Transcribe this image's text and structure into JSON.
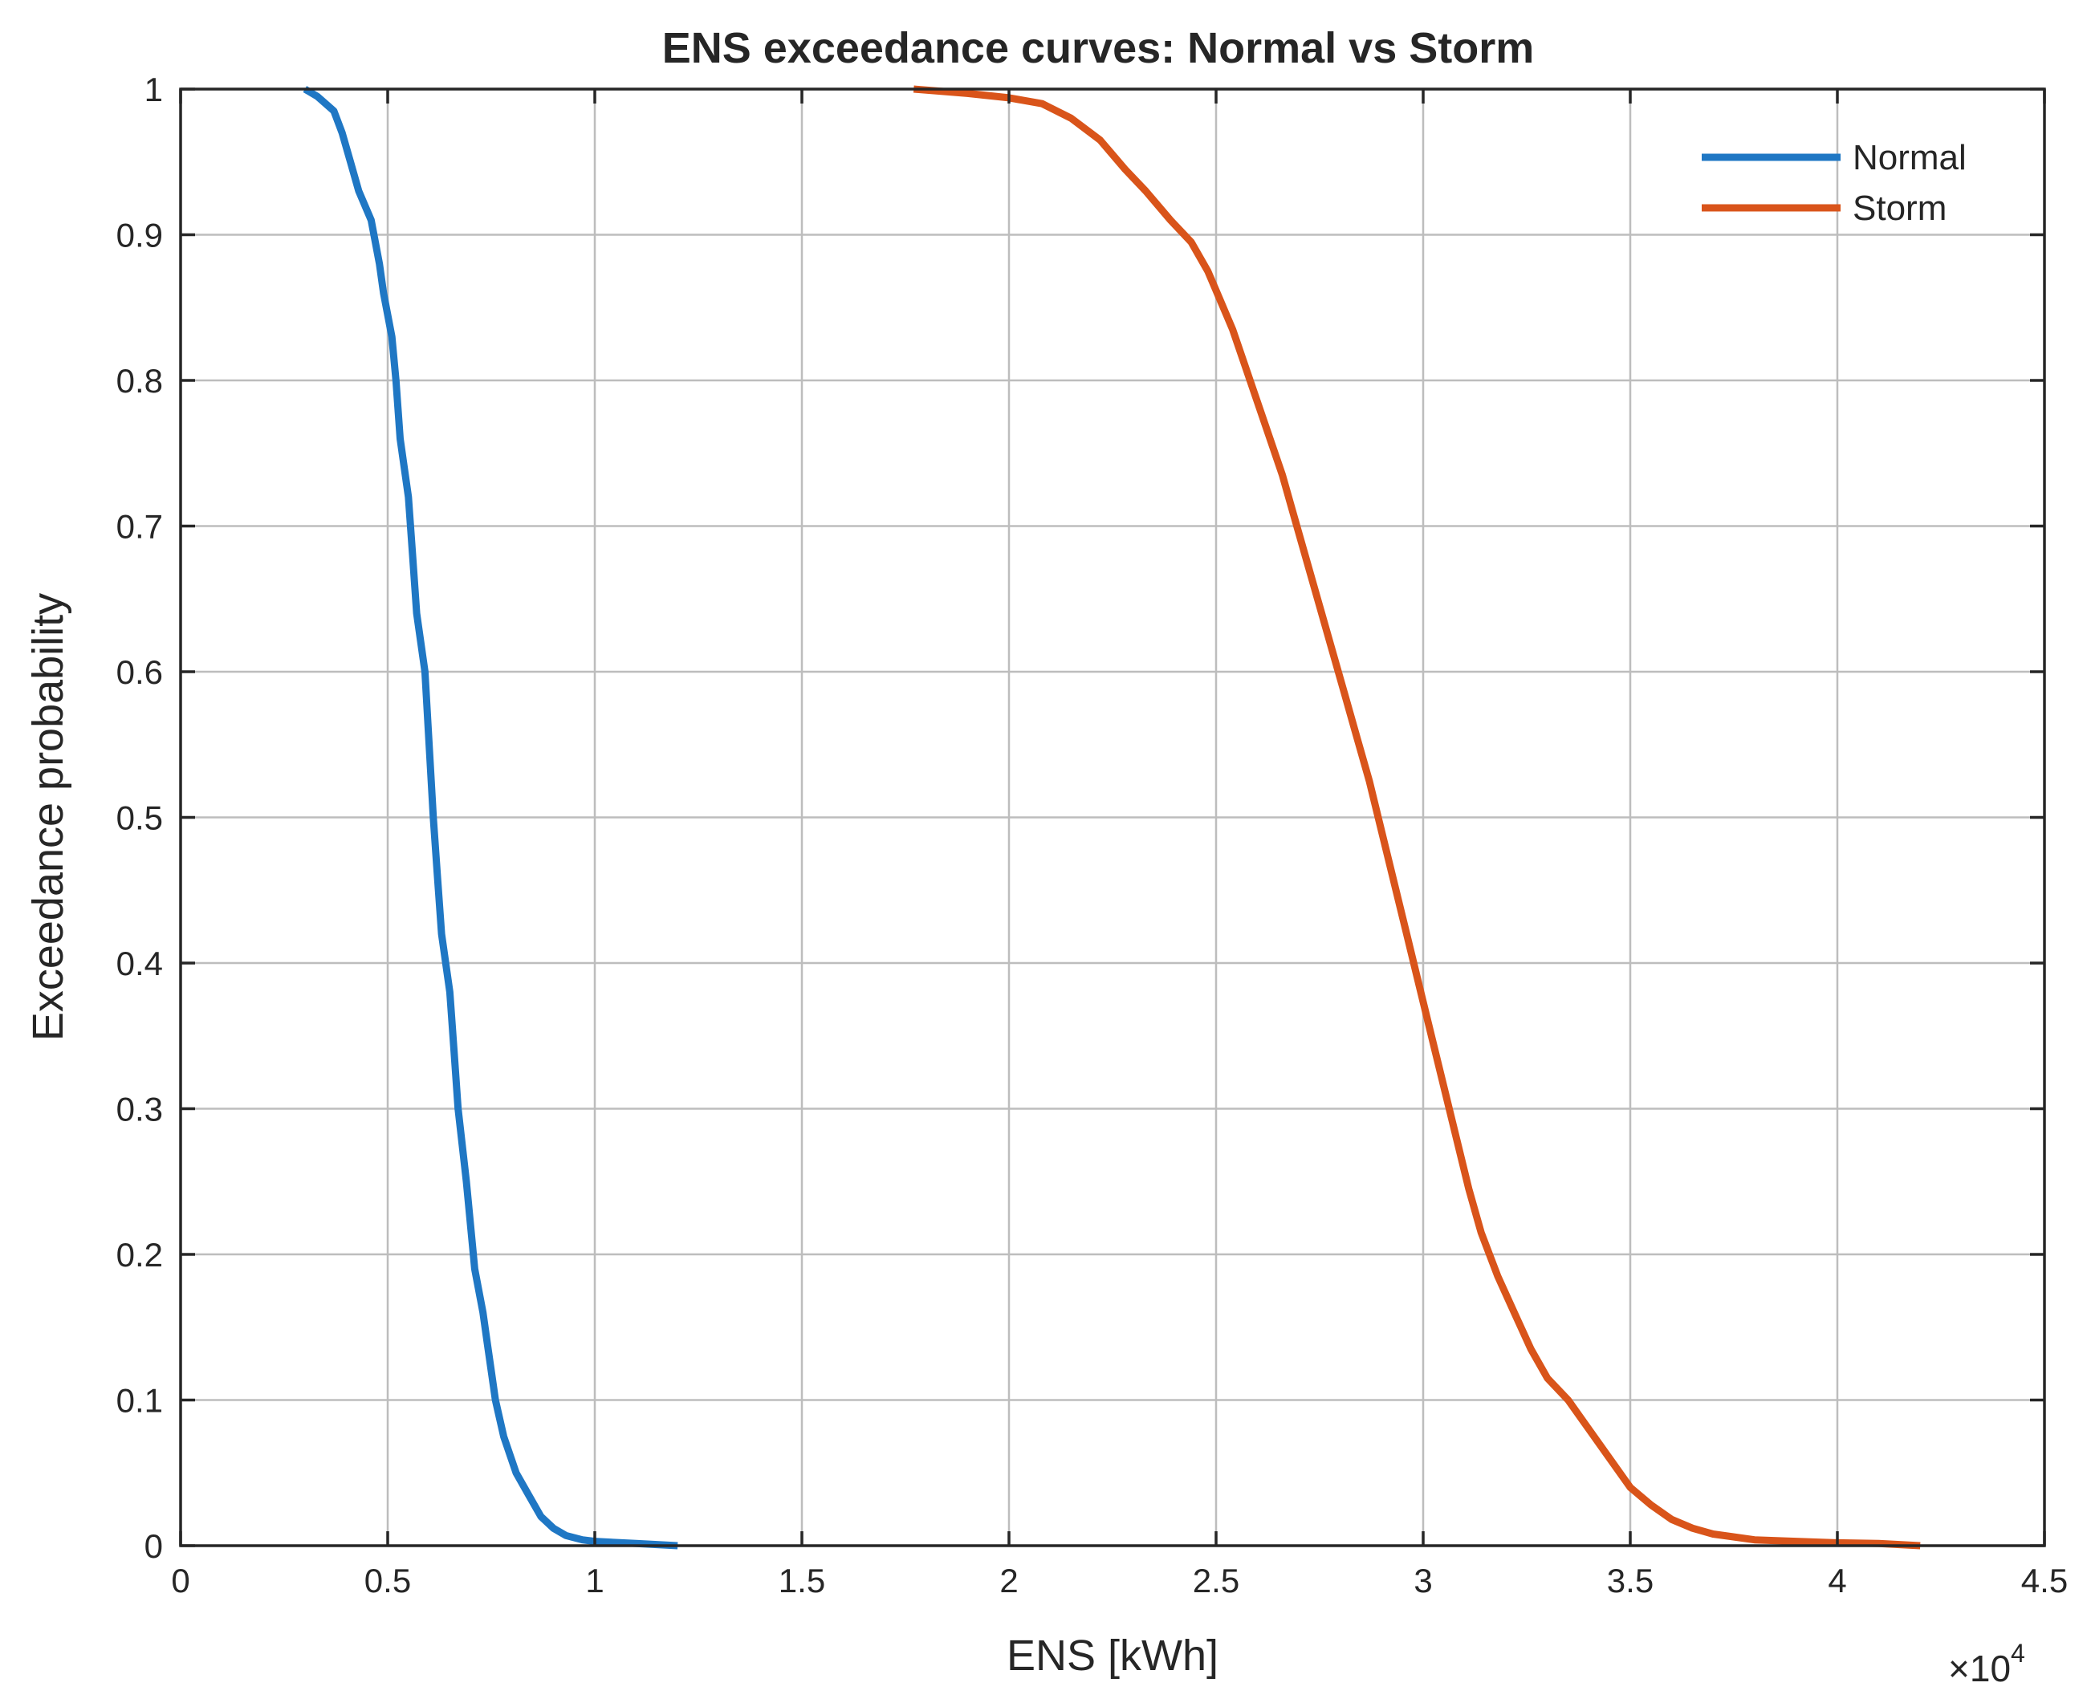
{
  "chart_data": {
    "type": "line",
    "title": "ENS exceedance curves: Normal vs Storm",
    "xlabel": "ENS [kWh]",
    "ylabel": "Exceedance probability",
    "x_multiplier_label": "×10",
    "x_multiplier_exponent": "4",
    "xlim": [
      0,
      45000
    ],
    "ylim": [
      0,
      1
    ],
    "xticks": [
      0,
      5000,
      10000,
      15000,
      20000,
      25000,
      30000,
      35000,
      40000,
      45000
    ],
    "xtick_labels": [
      "0",
      "0.5",
      "1",
      "1.5",
      "2",
      "2.5",
      "3",
      "3.5",
      "4",
      "4.5"
    ],
    "yticks": [
      0,
      0.1,
      0.2,
      0.3,
      0.4,
      0.5,
      0.6,
      0.7,
      0.8,
      0.9,
      1
    ],
    "ytick_labels": [
      "0",
      "0.1",
      "0.2",
      "0.3",
      "0.4",
      "0.5",
      "0.6",
      "0.7",
      "0.8",
      "0.9",
      "1"
    ],
    "grid": true,
    "legend_position": "top-right",
    "series": [
      {
        "name": "Normal",
        "color": "#1f77c4",
        "x": [
          3000,
          3300,
          3700,
          3900,
          4100,
          4300,
          4600,
          4800,
          4900,
          5100,
          5200,
          5300,
          5500,
          5600,
          5700,
          5900,
          6000,
          6100,
          6200,
          6300,
          6500,
          6600,
          6700,
          6900,
          7000,
          7100,
          7300,
          7400,
          7500,
          7600,
          7800,
          8100,
          8400,
          8700,
          9000,
          9300,
          9700,
          10000,
          11000,
          12000
        ],
        "y": [
          1.0,
          0.995,
          0.985,
          0.97,
          0.95,
          0.93,
          0.91,
          0.88,
          0.86,
          0.83,
          0.8,
          0.76,
          0.72,
          0.68,
          0.64,
          0.6,
          0.55,
          0.5,
          0.46,
          0.42,
          0.38,
          0.34,
          0.3,
          0.25,
          0.22,
          0.19,
          0.16,
          0.14,
          0.12,
          0.1,
          0.075,
          0.05,
          0.035,
          0.02,
          0.012,
          0.007,
          0.004,
          0.003,
          0.0015,
          0.0
        ]
      },
      {
        "name": "Storm",
        "color": "#d9541a",
        "x": [
          17700,
          19000,
          20000,
          20800,
          21500,
          22200,
          22800,
          23300,
          23900,
          24400,
          24800,
          25100,
          25400,
          25700,
          26000,
          26300,
          26600,
          26900,
          27200,
          27500,
          27800,
          28100,
          28400,
          28700,
          29000,
          29300,
          29600,
          29900,
          30200,
          30500,
          30800,
          31100,
          31400,
          31800,
          32200,
          32600,
          33000,
          33500,
          34000,
          34500,
          35000,
          35500,
          36000,
          36500,
          37000,
          38000,
          39000,
          40000,
          41000,
          42000
        ],
        "y": [
          1.0,
          0.997,
          0.994,
          0.99,
          0.98,
          0.965,
          0.945,
          0.93,
          0.91,
          0.895,
          0.875,
          0.855,
          0.835,
          0.81,
          0.785,
          0.76,
          0.735,
          0.705,
          0.675,
          0.645,
          0.615,
          0.585,
          0.555,
          0.525,
          0.49,
          0.455,
          0.42,
          0.385,
          0.35,
          0.315,
          0.28,
          0.245,
          0.215,
          0.185,
          0.16,
          0.135,
          0.115,
          0.1,
          0.08,
          0.06,
          0.04,
          0.028,
          0.018,
          0.012,
          0.008,
          0.004,
          0.003,
          0.002,
          0.0015,
          0.0
        ]
      }
    ]
  }
}
